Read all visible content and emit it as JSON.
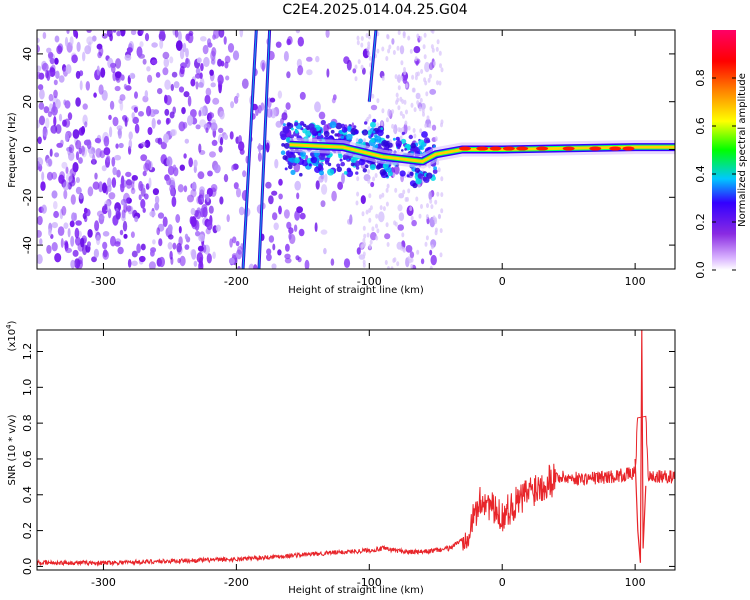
{
  "title": "C2E4.2025.014.04.25.G04",
  "chart_data": [
    {
      "type": "heatmap",
      "xlabel": "Height of straight line (km)",
      "ylabel": "Frequency (Hz)",
      "xlim": [
        -350,
        130
      ],
      "ylim": [
        -50,
        50
      ],
      "xticks": [
        -300,
        -200,
        -100,
        0,
        100
      ],
      "yticks": [
        -40,
        -20,
        0,
        20,
        40
      ],
      "colorbar": {
        "label": "Normalized spectral amplitude",
        "range": [
          0.0,
          1.0
        ],
        "ticks": [
          "0.0",
          "0.2",
          "0.4",
          "0.6",
          "0.8"
        ],
        "tick_values": [
          0.0,
          0.2,
          0.4,
          0.6,
          0.8
        ],
        "colors": [
          "#ffffff",
          "#d9b3ff",
          "#8a2be2",
          "#3300ff",
          "#00c8ff",
          "#00ff00",
          "#ffff00",
          "#ff8000",
          "#ff0000",
          "#ff0066"
        ]
      },
      "streaks": [
        {
          "x_start": -195,
          "x_end": -185,
          "y_start": -50,
          "y_end": 50
        },
        {
          "x_start": -183,
          "x_end": -175,
          "y_start": -50,
          "y_end": 50
        },
        {
          "x_start": -100,
          "x_end": -95,
          "y_start": 20,
          "y_end": 50
        }
      ],
      "ridge": [
        {
          "x": -160,
          "y": 2
        },
        {
          "x": -120,
          "y": 1
        },
        {
          "x": -90,
          "y": -3
        },
        {
          "x": -60,
          "y": -5
        },
        {
          "x": -50,
          "y": -2
        },
        {
          "x": -30,
          "y": 0
        },
        {
          "x": 0,
          "y": 0
        },
        {
          "x": 50,
          "y": 0.5
        },
        {
          "x": 100,
          "y": 1
        },
        {
          "x": 130,
          "y": 1
        }
      ]
    },
    {
      "type": "line",
      "xlabel": "Height of straight line (km)",
      "ylabel": "SNR (10 * v/v)",
      "y_multiplier": "(x10",
      "y_multiplier_exp": "4",
      "y_multiplier_close": ")",
      "xlim": [
        -350,
        130
      ],
      "ylim": [
        -0.02,
        1.32
      ],
      "xticks": [
        -300,
        -200,
        -100,
        0,
        100
      ],
      "yticks": [
        "0.0",
        "0.2",
        "0.4",
        "0.6",
        "0.8",
        "1.0",
        "1.2"
      ],
      "ytick_values": [
        0.0,
        0.2,
        0.4,
        0.6,
        0.8,
        1.0,
        1.2
      ],
      "color": "#e8252a",
      "series": [
        {
          "x": [
            -350,
            -300,
            -250,
            -200,
            -180,
            -160,
            -140,
            -120,
            -100,
            -90,
            -80,
            -70,
            -60,
            -50,
            -40,
            -30,
            -25,
            -20,
            -15,
            -10,
            -5,
            0,
            5,
            10,
            15,
            20,
            30,
            40,
            60,
            80,
            100,
            105,
            110,
            130
          ],
          "y": [
            0.02,
            0.02,
            0.03,
            0.04,
            0.05,
            0.06,
            0.07,
            0.08,
            0.09,
            0.1,
            0.09,
            0.08,
            0.08,
            0.09,
            0.1,
            0.15,
            0.2,
            0.3,
            0.38,
            0.35,
            0.3,
            0.28,
            0.32,
            0.35,
            0.38,
            0.42,
            0.46,
            0.5,
            0.49,
            0.5,
            0.52,
            1.32,
            0.5,
            0.5
          ]
        }
      ]
    }
  ]
}
